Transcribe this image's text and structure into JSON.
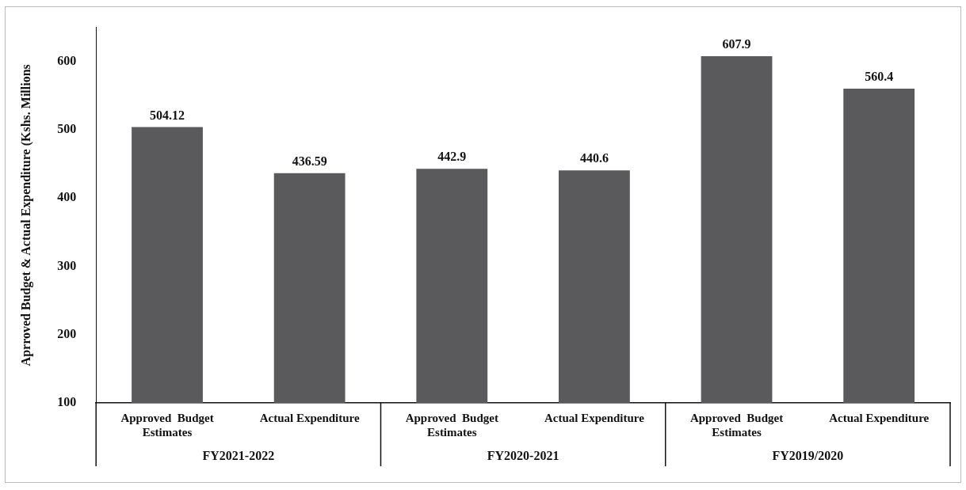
{
  "chart_data": {
    "type": "bar",
    "ylabel": "Aprroved Budget & Actual Expenditure (Kshs. Millions",
    "categories": [
      "Approved  Budget Estimates",
      "Actual Expenditure",
      "Approved  Budget Estimates",
      "Actual Expenditure",
      "Approved  Budget Estimates",
      "Actual Expenditure"
    ],
    "values": [
      504.12,
      436.59,
      442.9,
      440.6,
      607.9,
      560.4
    ],
    "color": "#5a5a5c",
    "ylim": [
      100,
      650
    ],
    "yticks": [
      100,
      200,
      300,
      400,
      500,
      600
    ],
    "grid": false,
    "legend": false,
    "data_labels": true,
    "annotations": [
      "FY2021-2022",
      "FY2020-2021",
      "FY2019/2020"
    ]
  }
}
